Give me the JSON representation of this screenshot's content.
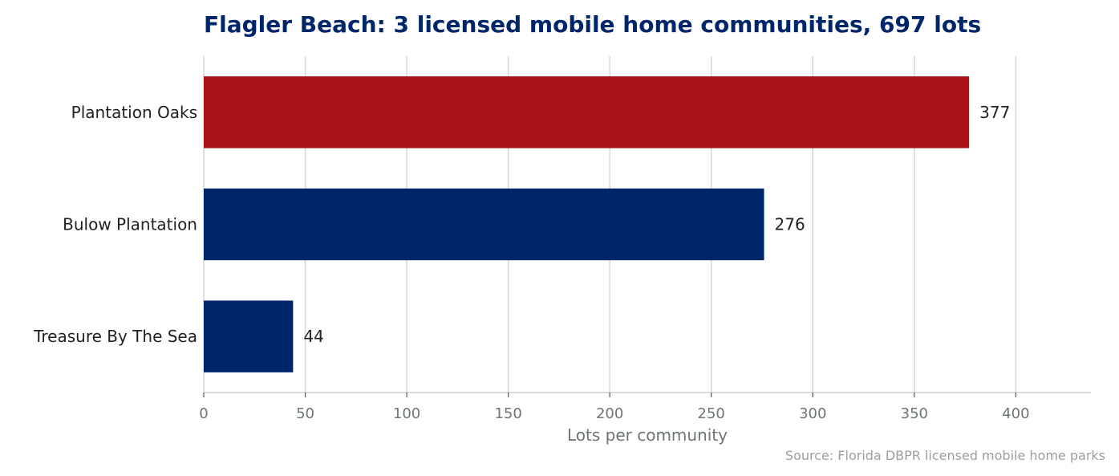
{
  "chart_data": {
    "type": "bar",
    "orientation": "horizontal",
    "title": "Flagler Beach: 3 licensed mobile home communities, 697 lots",
    "xlabel": "Lots per community",
    "ylabel": "",
    "categories": [
      "Plantation Oaks",
      "Bulow Plantation",
      "Treasure By The Sea"
    ],
    "values": [
      377,
      276,
      44
    ],
    "bar_colors": [
      "#a81115",
      "#00266a",
      "#00266a"
    ],
    "xlim": [
      0,
      437
    ],
    "xticks": [
      0,
      50,
      100,
      150,
      200,
      250,
      300,
      350,
      400
    ],
    "xtick_labels": [
      "0",
      "50",
      "100",
      "150",
      "200",
      "250",
      "300",
      "350",
      "400"
    ],
    "value_labels": [
      "377",
      "276",
      "44"
    ],
    "grid": "vertical",
    "legend": "none",
    "source": "Source: Florida DBPR licensed mobile home parks"
  },
  "colors": {
    "highlight": "#a81115",
    "primary": "#00266a",
    "title": "#00266a",
    "axis_text": "#6d7575",
    "source_text": "#9aa0a0",
    "grid": "#d6d6d6"
  }
}
